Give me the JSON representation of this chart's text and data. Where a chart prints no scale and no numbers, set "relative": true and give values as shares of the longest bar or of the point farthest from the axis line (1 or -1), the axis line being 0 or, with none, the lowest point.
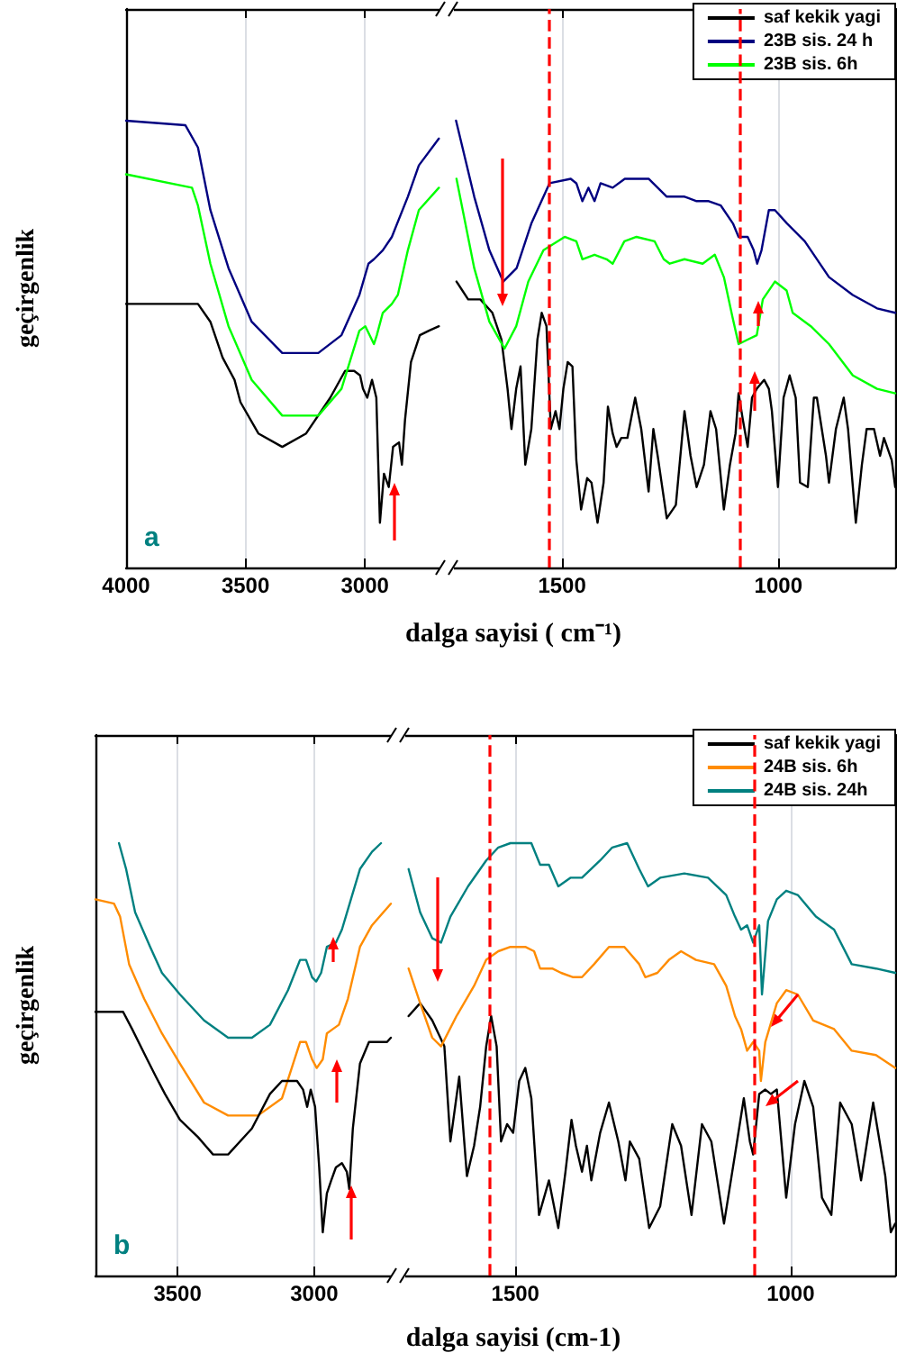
{
  "chart_data": [
    {
      "type": "line",
      "relative": true,
      "ylabel": "geçirgenlik",
      "xlabel": "dalga sayisi ( cm⁻¹)",
      "annotations": [
        "a"
      ],
      "xlim": [
        4000,
        2680
      ],
      "xticks": [
        4000,
        3500,
        3000
      ],
      "tick_labels": "x",
      "marker": "none",
      "line_style": "solid",
      "series": [
        {
          "color": "#000000",
          "x": [
            4000,
            3699,
            3647,
            3596,
            3546,
            3521,
            3446,
            3346,
            3246,
            3145,
            3083,
            3045,
            3020,
            3008,
            2990,
            2970,
            2952,
            2937,
            2920,
            2900,
            2882,
            2857,
            2845,
            2832,
            2807,
            2770,
            2732,
            2690
          ],
          "values": [
            0.59,
            0.59,
            0.55,
            0.47,
            0.42,
            0.37,
            0.3,
            0.27,
            0.3,
            0.38,
            0.44,
            0.44,
            0.43,
            0.4,
            0.38,
            0.42,
            0.38,
            0.1,
            0.21,
            0.18,
            0.27,
            0.28,
            0.23,
            0.33,
            0.46,
            0.52,
            0.53,
            0.54
          ]
        },
        {
          "color": "#000080",
          "x": [
            4000,
            3752,
            3699,
            3647,
            3571,
            3474,
            3346,
            3195,
            3098,
            3023,
            2985,
            2962,
            2925,
            2887,
            2820,
            2774,
            2690
          ],
          "values": [
            1,
            0.99,
            0.94,
            0.8,
            0.67,
            0.55,
            0.48,
            0.48,
            0.52,
            0.61,
            0.68,
            0.69,
            0.71,
            0.74,
            0.83,
            0.9,
            0.96
          ]
        },
        {
          "color": "#00ff00",
          "x": [
            4000,
            3724,
            3699,
            3647,
            3571,
            3474,
            3346,
            3195,
            3098,
            3023,
            2998,
            2962,
            2950,
            2925,
            2887,
            2862,
            2820,
            2774,
            2690
          ],
          "values": [
            0.88,
            0.85,
            0.81,
            0.68,
            0.54,
            0.42,
            0.34,
            0.34,
            0.4,
            0.53,
            0.54,
            0.5,
            0.52,
            0.57,
            0.59,
            0.61,
            0.71,
            0.8,
            0.85
          ]
        }
      ]
    },
    {
      "type": "line",
      "relative": true,
      "xlim": [
        1750,
        730
      ],
      "xticks": [
        1500,
        1000
      ],
      "tick_labels": "x",
      "marker": "none",
      "line_style": "solid",
      "legend": "top right",
      "ref_lines": [
        {
          "axis": "x",
          "value": 1530,
          "color": "#ff0000",
          "line_style": "dashed"
        },
        {
          "axis": "x",
          "value": 1088,
          "color": "#ff0000",
          "line_style": "dashed"
        }
      ],
      "series": [
        {
          "name": "saf kekik yagi",
          "color": "#000000",
          "x": [
            1744,
            1717,
            1689,
            1661,
            1640,
            1626,
            1617,
            1606,
            1596,
            1585,
            1571,
            1557,
            1547,
            1536,
            1526,
            1515,
            1506,
            1497,
            1487,
            1476,
            1467,
            1456,
            1442,
            1432,
            1418,
            1404,
            1394,
            1383,
            1374,
            1363,
            1349,
            1331,
            1317,
            1300,
            1289,
            1279,
            1258,
            1237,
            1217,
            1203,
            1189,
            1172,
            1157,
            1144,
            1126,
            1112,
            1099,
            1092,
            1082,
            1071,
            1061,
            1050,
            1033,
            1022,
            1015,
            1001,
            988,
            974,
            960,
            950,
            932,
            918,
            911,
            890,
            883,
            867,
            849,
            839,
            821,
            807,
            796,
            779,
            765,
            756,
            738,
            730
          ],
          "values": [
            0.64,
            0.6,
            0.6,
            0.57,
            0.51,
            0.4,
            0.31,
            0.4,
            0.45,
            0.23,
            0.31,
            0.51,
            0.57,
            0.54,
            0.31,
            0.35,
            0.31,
            0.4,
            0.46,
            0.45,
            0.24,
            0.13,
            0.2,
            0.19,
            0.1,
            0.19,
            0.36,
            0.3,
            0.27,
            0.29,
            0.29,
            0.38,
            0.31,
            0.17,
            0.31,
            0.25,
            0.11,
            0.14,
            0.35,
            0.25,
            0.18,
            0.23,
            0.35,
            0.31,
            0.13,
            0.23,
            0.3,
            0.39,
            0.33,
            0.27,
            0.38,
            0.4,
            0.42,
            0.4,
            0.35,
            0.18,
            0.38,
            0.43,
            0.38,
            0.19,
            0.18,
            0.38,
            0.38,
            0.25,
            0.19,
            0.31,
            0.38,
            0.31,
            0.1,
            0.23,
            0.31,
            0.31,
            0.25,
            0.29,
            0.24,
            0.18
          ]
        },
        {
          "name": "23B sis. 24 h",
          "color": "#000080",
          "x": [
            1745,
            1703,
            1668,
            1636,
            1605,
            1571,
            1529,
            1480,
            1467,
            1453,
            1439,
            1425,
            1411,
            1383,
            1355,
            1300,
            1258,
            1237,
            1217,
            1189,
            1161,
            1133,
            1105,
            1092,
            1071,
            1057,
            1049,
            1039,
            1022,
            1008,
            980,
            939,
            883,
            828,
            772,
            730
          ],
          "values": [
            1,
            0.83,
            0.71,
            0.64,
            0.67,
            0.77,
            0.86,
            0.87,
            0.86,
            0.82,
            0.85,
            0.82,
            0.86,
            0.85,
            0.87,
            0.87,
            0.83,
            0.83,
            0.83,
            0.82,
            0.82,
            0.81,
            0.77,
            0.74,
            0.74,
            0.71,
            0.68,
            0.71,
            0.8,
            0.8,
            0.77,
            0.73,
            0.65,
            0.61,
            0.58,
            0.57
          ]
        },
        {
          "name": "23B sis. 6h",
          "color": "#00ff00",
          "x": [
            1744,
            1703,
            1668,
            1633,
            1606,
            1578,
            1543,
            1494,
            1467,
            1453,
            1425,
            1397,
            1383,
            1356,
            1328,
            1286,
            1265,
            1251,
            1217,
            1175,
            1147,
            1126,
            1106,
            1092,
            1071,
            1050,
            1036,
            1008,
            981,
            967,
            925,
            883,
            828,
            772,
            730
          ],
          "values": [
            0.87,
            0.67,
            0.55,
            0.49,
            0.54,
            0.64,
            0.71,
            0.74,
            0.73,
            0.69,
            0.7,
            0.69,
            0.68,
            0.73,
            0.74,
            0.73,
            0.69,
            0.68,
            0.69,
            0.68,
            0.7,
            0.65,
            0.56,
            0.5,
            0.51,
            0.52,
            0.6,
            0.64,
            0.62,
            0.57,
            0.54,
            0.5,
            0.43,
            0.4,
            0.39
          ]
        }
      ]
    },
    {
      "type": "line",
      "relative": true,
      "ylabel": "geçirgenlik",
      "xlabel": "dalga sayisi (cm-1)",
      "annotations": [
        "b"
      ],
      "xlim": [
        3800,
        2720
      ],
      "xticks": [
        3500,
        3000
      ],
      "tick_labels": "x",
      "marker": "none",
      "line_style": "solid",
      "series": [
        {
          "color": "#008080",
          "x": [
            3714,
            3688,
            3655,
            3600,
            3557,
            3491,
            3403,
            3315,
            3228,
            3162,
            3096,
            3052,
            3030,
            3008,
            2993,
            2975,
            2954,
            2921,
            2899,
            2866,
            2833,
            2789,
            2756
          ],
          "values": [
            1,
            0.94,
            0.84,
            0.76,
            0.7,
            0.65,
            0.59,
            0.55,
            0.55,
            0.58,
            0.66,
            0.73,
            0.73,
            0.69,
            0.68,
            0.7,
            0.76,
            0.77,
            0.8,
            0.87,
            0.94,
            0.98,
            1
          ]
        },
        {
          "color": "#ff8c00",
          "x": [
            3800,
            3732,
            3710,
            3677,
            3622,
            3557,
            3491,
            3403,
            3315,
            3206,
            3118,
            3052,
            3030,
            3008,
            2991,
            2969,
            2954,
            2932,
            2910,
            2877,
            2833,
            2789,
            2720
          ],
          "values": [
            0.87,
            0.86,
            0.83,
            0.72,
            0.64,
            0.56,
            0.49,
            0.4,
            0.37,
            0.37,
            0.41,
            0.54,
            0.54,
            0.5,
            0.48,
            0.5,
            0.56,
            0.57,
            0.58,
            0.64,
            0.76,
            0.81,
            0.86
          ]
        },
        {
          "color": "#000000",
          "x": [
            3800,
            3699,
            3666,
            3611,
            3579,
            3546,
            3491,
            3425,
            3370,
            3315,
            3228,
            3162,
            3118,
            3063,
            3041,
            3026,
            3013,
            2997,
            2982,
            2969,
            2954,
            2938,
            2921,
            2899,
            2881,
            2872,
            2859,
            2833,
            2800,
            2767,
            2734,
            2720
          ],
          "values": [
            0.61,
            0.61,
            0.57,
            0.5,
            0.46,
            0.42,
            0.36,
            0.32,
            0.28,
            0.28,
            0.34,
            0.42,
            0.45,
            0.45,
            0.43,
            0.39,
            0.43,
            0.39,
            0.25,
            0.1,
            0.19,
            0.22,
            0.25,
            0.26,
            0.24,
            0.2,
            0.34,
            0.49,
            0.54,
            0.54,
            0.54,
            0.55
          ]
        }
      ]
    },
    {
      "type": "line",
      "relative": true,
      "xlim": [
        1700,
        810
      ],
      "xticks": [
        1500,
        1000
      ],
      "tick_labels": "x",
      "marker": "none",
      "line_style": "solid",
      "legend": "top right",
      "ref_lines": [
        {
          "axis": "x",
          "value": 1546,
          "color": "#ff0000",
          "line_style": "dashed"
        },
        {
          "axis": "x",
          "value": 1066,
          "color": "#ff0000",
          "line_style": "dashed"
        }
      ],
      "series": [
        {
          "name": "saf kekik yagi",
          "color": "#000000",
          "x": [
            1694,
            1673,
            1651,
            1629,
            1618,
            1602,
            1588,
            1575,
            1564,
            1553,
            1544,
            1534,
            1526,
            1515,
            1504,
            1493,
            1482,
            1471,
            1457,
            1439,
            1422,
            1409,
            1398,
            1390,
            1379,
            1370,
            1362,
            1346,
            1330,
            1313,
            1300,
            1292,
            1275,
            1257,
            1237,
            1215,
            1199,
            1180,
            1161,
            1144,
            1121,
            1101,
            1085,
            1074,
            1068,
            1057,
            1046,
            1036,
            1025,
            1008,
            992,
            975,
            959,
            943,
            926,
            910,
            889,
            872,
            850,
            828,
            818,
            810
          ],
          "values": [
            0.6,
            0.63,
            0.59,
            0.53,
            0.31,
            0.46,
            0.23,
            0.3,
            0.39,
            0.53,
            0.6,
            0.53,
            0.31,
            0.35,
            0.33,
            0.45,
            0.48,
            0.41,
            0.14,
            0.22,
            0.11,
            0.24,
            0.36,
            0.3,
            0.24,
            0.3,
            0.22,
            0.33,
            0.4,
            0.31,
            0.22,
            0.31,
            0.27,
            0.11,
            0.16,
            0.35,
            0.3,
            0.14,
            0.35,
            0.31,
            0.12,
            0.28,
            0.41,
            0.31,
            0.28,
            0.42,
            0.43,
            0.42,
            0.43,
            0.18,
            0.35,
            0.45,
            0.39,
            0.18,
            0.14,
            0.4,
            0.35,
            0.22,
            0.4,
            0.23,
            0.1,
            0.12
          ]
        },
        {
          "name": "24B sis. 6h",
          "color": "#ff8c00",
          "x": [
            1694,
            1673,
            1651,
            1635,
            1607,
            1575,
            1553,
            1531,
            1509,
            1482,
            1466,
            1455,
            1433,
            1417,
            1395,
            1379,
            1357,
            1330,
            1302,
            1275,
            1264,
            1242,
            1221,
            1199,
            1172,
            1139,
            1117,
            1101,
            1090,
            1079,
            1068,
            1057,
            1054,
            1046,
            1025,
            1008,
            987,
            959,
            921,
            889,
            845,
            810
          ],
          "values": [
            0.71,
            0.63,
            0.55,
            0.53,
            0.6,
            0.67,
            0.73,
            0.75,
            0.76,
            0.76,
            0.75,
            0.71,
            0.71,
            0.7,
            0.69,
            0.69,
            0.72,
            0.76,
            0.76,
            0.72,
            0.69,
            0.7,
            0.73,
            0.75,
            0.73,
            0.72,
            0.67,
            0.6,
            0.57,
            0.52,
            0.54,
            0.52,
            0.45,
            0.54,
            0.63,
            0.66,
            0.65,
            0.59,
            0.57,
            0.52,
            0.51,
            0.48
          ]
        },
        {
          "name": "24B sis. 24h",
          "color": "#008080",
          "x": [
            1694,
            1673,
            1651,
            1635,
            1618,
            1586,
            1553,
            1531,
            1509,
            1488,
            1471,
            1455,
            1439,
            1422,
            1400,
            1379,
            1346,
            1324,
            1297,
            1275,
            1259,
            1237,
            1193,
            1150,
            1117,
            1101,
            1090,
            1079,
            1068,
            1057,
            1052,
            1041,
            1025,
            1008,
            987,
            954,
            921,
            889,
            845,
            810
          ],
          "values": [
            0.94,
            0.84,
            0.78,
            0.77,
            0.83,
            0.9,
            0.96,
            0.99,
            1,
            1,
            1,
            0.95,
            0.95,
            0.9,
            0.92,
            0.92,
            0.96,
            0.99,
            1,
            0.94,
            0.9,
            0.92,
            0.93,
            0.92,
            0.88,
            0.83,
            0.8,
            0.81,
            0.77,
            0.81,
            0.65,
            0.82,
            0.87,
            0.89,
            0.88,
            0.83,
            0.8,
            0.72,
            0.71,
            0.7
          ]
        }
      ]
    }
  ]
}
